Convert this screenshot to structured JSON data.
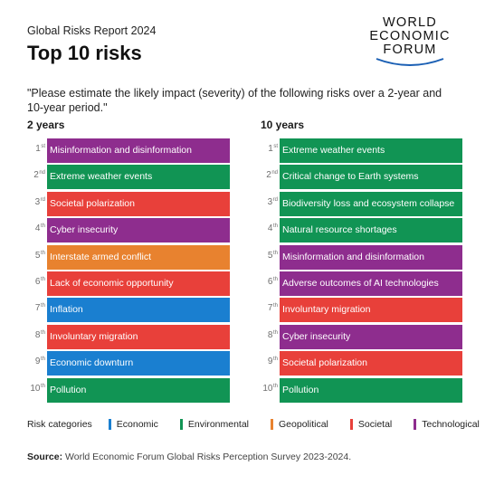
{
  "header": {
    "report": "Global Risks Report 2024",
    "title": "Top 10 risks",
    "logo_lines": [
      "WORLD",
      "ECONOMIC",
      "FORUM"
    ]
  },
  "question": "\"Please estimate the likely impact (severity) of the following risks over a 2-year and 10-year period.\"",
  "colors": {
    "Economic": "#1a7fd0",
    "Environmental": "#119454",
    "Geopolitical": "#e8822f",
    "Societal": "#e8403a",
    "Technological": "#8e2d8e"
  },
  "legend": {
    "label": "Risk categories",
    "items": [
      "Economic",
      "Environmental",
      "Geopolitical",
      "Societal",
      "Technological"
    ]
  },
  "source": {
    "label": "Source:",
    "text": "World Economic Forum Global Risks Perception Survey 2023-2024."
  },
  "chart_data": {
    "type": "table",
    "columns": [
      {
        "heading": "2 years",
        "rows": [
          {
            "rank": "1",
            "suffix": "st",
            "risk": "Misinformation and disinformation",
            "category": "Technological"
          },
          {
            "rank": "2",
            "suffix": "nd",
            "risk": "Extreme weather events",
            "category": "Environmental"
          },
          {
            "rank": "3",
            "suffix": "rd",
            "risk": "Societal polarization",
            "category": "Societal"
          },
          {
            "rank": "4",
            "suffix": "th",
            "risk": "Cyber insecurity",
            "category": "Technological"
          },
          {
            "rank": "5",
            "suffix": "th",
            "risk": "Interstate armed conflict",
            "category": "Geopolitical"
          },
          {
            "rank": "6",
            "suffix": "th",
            "risk": "Lack of economic opportunity",
            "category": "Societal"
          },
          {
            "rank": "7",
            "suffix": "th",
            "risk": "Inflation",
            "category": "Economic"
          },
          {
            "rank": "8",
            "suffix": "th",
            "risk": "Involuntary migration",
            "category": "Societal"
          },
          {
            "rank": "9",
            "suffix": "th",
            "risk": "Economic downturn",
            "category": "Economic"
          },
          {
            "rank": "10",
            "suffix": "th",
            "risk": "Pollution",
            "category": "Environmental"
          }
        ]
      },
      {
        "heading": "10 years",
        "rows": [
          {
            "rank": "1",
            "suffix": "st",
            "risk": "Extreme weather events",
            "category": "Environmental"
          },
          {
            "rank": "2",
            "suffix": "nd",
            "risk": "Critical change to Earth systems",
            "category": "Environmental"
          },
          {
            "rank": "3",
            "suffix": "rd",
            "risk": "Biodiversity loss and ecosystem collapse",
            "category": "Environmental"
          },
          {
            "rank": "4",
            "suffix": "th",
            "risk": "Natural resource shortages",
            "category": "Environmental"
          },
          {
            "rank": "5",
            "suffix": "th",
            "risk": "Misinformation and disinformation",
            "category": "Technological"
          },
          {
            "rank": "6",
            "suffix": "th",
            "risk": "Adverse outcomes of AI technologies",
            "category": "Technological"
          },
          {
            "rank": "7",
            "suffix": "th",
            "risk": "Involuntary migration",
            "category": "Societal"
          },
          {
            "rank": "8",
            "suffix": "th",
            "risk": "Cyber insecurity",
            "category": "Technological"
          },
          {
            "rank": "9",
            "suffix": "th",
            "risk": "Societal polarization",
            "category": "Societal"
          },
          {
            "rank": "10",
            "suffix": "th",
            "risk": "Pollution",
            "category": "Environmental"
          }
        ]
      }
    ]
  }
}
